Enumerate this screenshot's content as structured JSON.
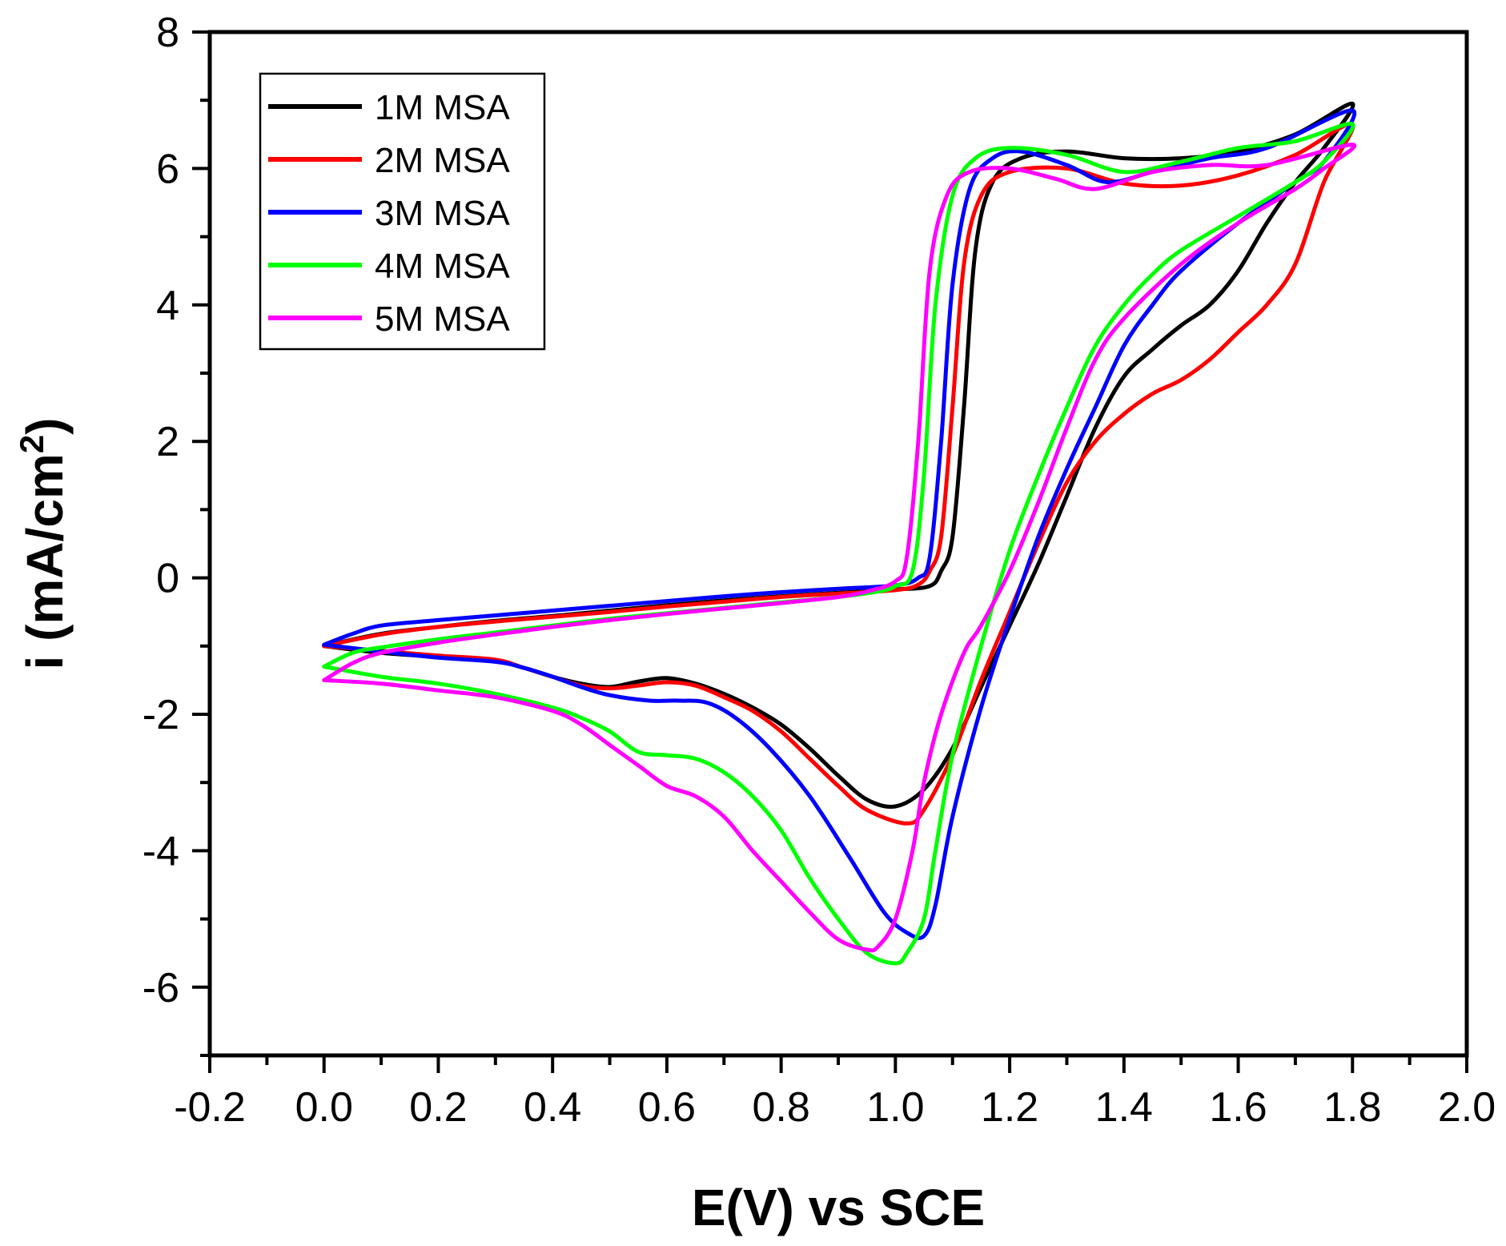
{
  "chart_data": {
    "type": "line",
    "title": "",
    "xlabel": "E(V) vs SCE",
    "ylabel_main": "i (mA/cm",
    "ylabel_sup": "2",
    "ylabel_close": ")",
    "xlim": [
      -0.2,
      2.0
    ],
    "ylim": [
      -7,
      8
    ],
    "xticks": [
      -0.2,
      0.0,
      0.2,
      0.4,
      0.6,
      0.8,
      1.0,
      1.2,
      1.4,
      1.6,
      1.8,
      2.0
    ],
    "xtick_labels": [
      "-0.2",
      "0.0",
      "0.2",
      "0.4",
      "0.6",
      "0.8",
      "1.0",
      "1.2",
      "1.4",
      "1.6",
      "1.8",
      "2.0"
    ],
    "yticks": [
      -6,
      -4,
      -2,
      0,
      2,
      4,
      6,
      8
    ],
    "ytick_labels": [
      "-6",
      "-4",
      "-2",
      "0",
      "2",
      "4",
      "6",
      "8"
    ],
    "grid": false,
    "legend_position": "top-left",
    "series": [
      {
        "name": "1M MSA",
        "color": "#000000",
        "points": [
          [
            0.0,
            -1.0
          ],
          [
            0.1,
            -0.82
          ],
          [
            0.2,
            -0.72
          ],
          [
            0.3,
            -0.63
          ],
          [
            0.4,
            -0.56
          ],
          [
            0.5,
            -0.48
          ],
          [
            0.6,
            -0.4
          ],
          [
            0.7,
            -0.33
          ],
          [
            0.8,
            -0.27
          ],
          [
            0.9,
            -0.22
          ],
          [
            1.0,
            -0.17
          ],
          [
            1.06,
            -0.12
          ],
          [
            1.08,
            0.1
          ],
          [
            1.1,
            0.6
          ],
          [
            1.12,
            2.5
          ],
          [
            1.14,
            4.8
          ],
          [
            1.17,
            5.8
          ],
          [
            1.22,
            6.15
          ],
          [
            1.3,
            6.25
          ],
          [
            1.4,
            6.15
          ],
          [
            1.5,
            6.15
          ],
          [
            1.6,
            6.25
          ],
          [
            1.7,
            6.5
          ],
          [
            1.8,
            6.95
          ],
          [
            1.75,
            6.3
          ],
          [
            1.7,
            5.8
          ],
          [
            1.65,
            5.2
          ],
          [
            1.6,
            4.5
          ],
          [
            1.55,
            4.0
          ],
          [
            1.5,
            3.7
          ],
          [
            1.45,
            3.35
          ],
          [
            1.4,
            2.95
          ],
          [
            1.35,
            2.2
          ],
          [
            1.3,
            1.2
          ],
          [
            1.25,
            0.2
          ],
          [
            1.2,
            -0.7
          ],
          [
            1.15,
            -1.6
          ],
          [
            1.1,
            -2.5
          ],
          [
            1.05,
            -3.1
          ],
          [
            1.0,
            -3.35
          ],
          [
            0.95,
            -3.25
          ],
          [
            0.9,
            -2.9
          ],
          [
            0.85,
            -2.5
          ],
          [
            0.8,
            -2.15
          ],
          [
            0.75,
            -1.9
          ],
          [
            0.7,
            -1.7
          ],
          [
            0.65,
            -1.55
          ],
          [
            0.6,
            -1.47
          ],
          [
            0.55,
            -1.52
          ],
          [
            0.5,
            -1.6
          ],
          [
            0.45,
            -1.55
          ],
          [
            0.4,
            -1.45
          ],
          [
            0.35,
            -1.32
          ],
          [
            0.3,
            -1.22
          ],
          [
            0.2,
            -1.16
          ],
          [
            0.1,
            -1.1
          ],
          [
            0.0,
            -1.0
          ]
        ]
      },
      {
        "name": "2M MSA",
        "color": "#ff0000",
        "points": [
          [
            0.0,
            -1.0
          ],
          [
            0.1,
            -0.83
          ],
          [
            0.2,
            -0.72
          ],
          [
            0.3,
            -0.64
          ],
          [
            0.4,
            -0.57
          ],
          [
            0.5,
            -0.5
          ],
          [
            0.6,
            -0.42
          ],
          [
            0.7,
            -0.35
          ],
          [
            0.8,
            -0.28
          ],
          [
            0.9,
            -0.23
          ],
          [
            1.0,
            -0.18
          ],
          [
            1.04,
            -0.1
          ],
          [
            1.06,
            0.1
          ],
          [
            1.08,
            0.6
          ],
          [
            1.1,
            2.5
          ],
          [
            1.12,
            4.6
          ],
          [
            1.15,
            5.6
          ],
          [
            1.2,
            5.95
          ],
          [
            1.3,
            6.0
          ],
          [
            1.4,
            5.78
          ],
          [
            1.5,
            5.75
          ],
          [
            1.6,
            5.9
          ],
          [
            1.7,
            6.2
          ],
          [
            1.8,
            6.65
          ],
          [
            1.75,
            5.8
          ],
          [
            1.7,
            4.6
          ],
          [
            1.65,
            4.0
          ],
          [
            1.6,
            3.6
          ],
          [
            1.55,
            3.2
          ],
          [
            1.5,
            2.9
          ],
          [
            1.45,
            2.7
          ],
          [
            1.4,
            2.4
          ],
          [
            1.35,
            2.0
          ],
          [
            1.3,
            1.4
          ],
          [
            1.25,
            0.5
          ],
          [
            1.2,
            -0.5
          ],
          [
            1.15,
            -1.5
          ],
          [
            1.1,
            -2.6
          ],
          [
            1.05,
            -3.4
          ],
          [
            1.02,
            -3.6
          ],
          [
            0.95,
            -3.4
          ],
          [
            0.9,
            -3.05
          ],
          [
            0.85,
            -2.65
          ],
          [
            0.8,
            -2.25
          ],
          [
            0.75,
            -1.95
          ],
          [
            0.7,
            -1.75
          ],
          [
            0.65,
            -1.58
          ],
          [
            0.6,
            -1.53
          ],
          [
            0.55,
            -1.58
          ],
          [
            0.5,
            -1.62
          ],
          [
            0.45,
            -1.58
          ],
          [
            0.4,
            -1.45
          ],
          [
            0.35,
            -1.32
          ],
          [
            0.3,
            -1.2
          ],
          [
            0.2,
            -1.14
          ],
          [
            0.1,
            -1.07
          ],
          [
            0.0,
            -1.0
          ]
        ]
      },
      {
        "name": "3M MSA",
        "color": "#0000ff",
        "points": [
          [
            0.0,
            -0.98
          ],
          [
            0.05,
            -0.82
          ],
          [
            0.1,
            -0.7
          ],
          [
            0.2,
            -0.62
          ],
          [
            0.3,
            -0.55
          ],
          [
            0.4,
            -0.48
          ],
          [
            0.5,
            -0.41
          ],
          [
            0.6,
            -0.34
          ],
          [
            0.7,
            -0.27
          ],
          [
            0.8,
            -0.21
          ],
          [
            0.9,
            -0.16
          ],
          [
            1.0,
            -0.11
          ],
          [
            1.04,
            0.0
          ],
          [
            1.06,
            0.3
          ],
          [
            1.08,
            2.0
          ],
          [
            1.1,
            4.3
          ],
          [
            1.13,
            5.7
          ],
          [
            1.17,
            6.15
          ],
          [
            1.22,
            6.25
          ],
          [
            1.3,
            6.05
          ],
          [
            1.37,
            5.8
          ],
          [
            1.45,
            5.95
          ],
          [
            1.55,
            6.15
          ],
          [
            1.65,
            6.3
          ],
          [
            1.8,
            6.85
          ],
          [
            1.75,
            6.1
          ],
          [
            1.7,
            5.8
          ],
          [
            1.6,
            5.2
          ],
          [
            1.5,
            4.5
          ],
          [
            1.45,
            4.0
          ],
          [
            1.4,
            3.4
          ],
          [
            1.35,
            2.5
          ],
          [
            1.3,
            1.6
          ],
          [
            1.25,
            0.6
          ],
          [
            1.2,
            -0.6
          ],
          [
            1.15,
            -1.9
          ],
          [
            1.1,
            -3.5
          ],
          [
            1.07,
            -4.8
          ],
          [
            1.05,
            -5.25
          ],
          [
            1.02,
            -5.2
          ],
          [
            0.98,
            -4.9
          ],
          [
            0.92,
            -4.1
          ],
          [
            0.85,
            -3.2
          ],
          [
            0.78,
            -2.5
          ],
          [
            0.72,
            -2.05
          ],
          [
            0.67,
            -1.83
          ],
          [
            0.62,
            -1.8
          ],
          [
            0.57,
            -1.8
          ],
          [
            0.5,
            -1.72
          ],
          [
            0.45,
            -1.6
          ],
          [
            0.4,
            -1.45
          ],
          [
            0.35,
            -1.32
          ],
          [
            0.3,
            -1.23
          ],
          [
            0.2,
            -1.17
          ],
          [
            0.1,
            -1.08
          ],
          [
            0.0,
            -0.98
          ]
        ]
      },
      {
        "name": "4M MSA",
        "color": "#00ff00",
        "points": [
          [
            0.0,
            -1.3
          ],
          [
            0.05,
            -1.1
          ],
          [
            0.1,
            -1.02
          ],
          [
            0.2,
            -0.9
          ],
          [
            0.3,
            -0.8
          ],
          [
            0.4,
            -0.7
          ],
          [
            0.5,
            -0.6
          ],
          [
            0.6,
            -0.52
          ],
          [
            0.7,
            -0.44
          ],
          [
            0.8,
            -0.36
          ],
          [
            0.9,
            -0.28
          ],
          [
            0.97,
            -0.2
          ],
          [
            1.0,
            -0.12
          ],
          [
            1.03,
            0.1
          ],
          [
            1.05,
            1.5
          ],
          [
            1.07,
            4.0
          ],
          [
            1.1,
            5.6
          ],
          [
            1.14,
            6.15
          ],
          [
            1.2,
            6.3
          ],
          [
            1.3,
            6.2
          ],
          [
            1.4,
            5.95
          ],
          [
            1.5,
            6.1
          ],
          [
            1.6,
            6.3
          ],
          [
            1.7,
            6.4
          ],
          [
            1.8,
            6.65
          ],
          [
            1.75,
            6.1
          ],
          [
            1.7,
            5.8
          ],
          [
            1.6,
            5.3
          ],
          [
            1.5,
            4.8
          ],
          [
            1.45,
            4.45
          ],
          [
            1.4,
            4.0
          ],
          [
            1.35,
            3.4
          ],
          [
            1.3,
            2.5
          ],
          [
            1.25,
            1.5
          ],
          [
            1.2,
            0.4
          ],
          [
            1.15,
            -1.0
          ],
          [
            1.1,
            -2.6
          ],
          [
            1.07,
            -4.0
          ],
          [
            1.05,
            -5.0
          ],
          [
            1.02,
            -5.5
          ],
          [
            1.0,
            -5.65
          ],
          [
            0.95,
            -5.5
          ],
          [
            0.9,
            -5.0
          ],
          [
            0.85,
            -4.4
          ],
          [
            0.8,
            -3.7
          ],
          [
            0.75,
            -3.2
          ],
          [
            0.7,
            -2.85
          ],
          [
            0.65,
            -2.65
          ],
          [
            0.6,
            -2.6
          ],
          [
            0.55,
            -2.55
          ],
          [
            0.5,
            -2.25
          ],
          [
            0.45,
            -2.05
          ],
          [
            0.4,
            -1.9
          ],
          [
            0.3,
            -1.7
          ],
          [
            0.2,
            -1.55
          ],
          [
            0.1,
            -1.45
          ],
          [
            0.0,
            -1.3
          ]
        ]
      },
      {
        "name": "5M MSA",
        "color": "#ff00ff",
        "points": [
          [
            0.0,
            -1.5
          ],
          [
            0.05,
            -1.25
          ],
          [
            0.1,
            -1.1
          ],
          [
            0.2,
            -0.95
          ],
          [
            0.3,
            -0.83
          ],
          [
            0.4,
            -0.72
          ],
          [
            0.5,
            -0.62
          ],
          [
            0.6,
            -0.53
          ],
          [
            0.7,
            -0.45
          ],
          [
            0.8,
            -0.37
          ],
          [
            0.9,
            -0.28
          ],
          [
            0.95,
            -0.2
          ],
          [
            1.0,
            -0.05
          ],
          [
            1.02,
            0.3
          ],
          [
            1.04,
            2.0
          ],
          [
            1.06,
            4.5
          ],
          [
            1.09,
            5.6
          ],
          [
            1.13,
            5.95
          ],
          [
            1.2,
            6.0
          ],
          [
            1.28,
            5.85
          ],
          [
            1.35,
            5.7
          ],
          [
            1.45,
            5.95
          ],
          [
            1.55,
            6.05
          ],
          [
            1.65,
            6.05
          ],
          [
            1.8,
            6.35
          ],
          [
            1.75,
            6.0
          ],
          [
            1.7,
            5.7
          ],
          [
            1.6,
            5.2
          ],
          [
            1.5,
            4.6
          ],
          [
            1.4,
            3.8
          ],
          [
            1.35,
            3.2
          ],
          [
            1.3,
            2.2
          ],
          [
            1.25,
            1.1
          ],
          [
            1.2,
            0.1
          ],
          [
            1.15,
            -0.7
          ],
          [
            1.12,
            -1.1
          ],
          [
            1.08,
            -2.0
          ],
          [
            1.05,
            -3.0
          ],
          [
            1.03,
            -4.0
          ],
          [
            1.0,
            -5.0
          ],
          [
            0.97,
            -5.4
          ],
          [
            0.95,
            -5.45
          ],
          [
            0.9,
            -5.3
          ],
          [
            0.85,
            -4.9
          ],
          [
            0.8,
            -4.45
          ],
          [
            0.75,
            -4.0
          ],
          [
            0.7,
            -3.5
          ],
          [
            0.65,
            -3.2
          ],
          [
            0.6,
            -3.05
          ],
          [
            0.55,
            -2.75
          ],
          [
            0.5,
            -2.45
          ],
          [
            0.45,
            -2.15
          ],
          [
            0.4,
            -1.95
          ],
          [
            0.3,
            -1.75
          ],
          [
            0.2,
            -1.65
          ],
          [
            0.1,
            -1.55
          ],
          [
            0.0,
            -1.5
          ]
        ]
      }
    ]
  }
}
